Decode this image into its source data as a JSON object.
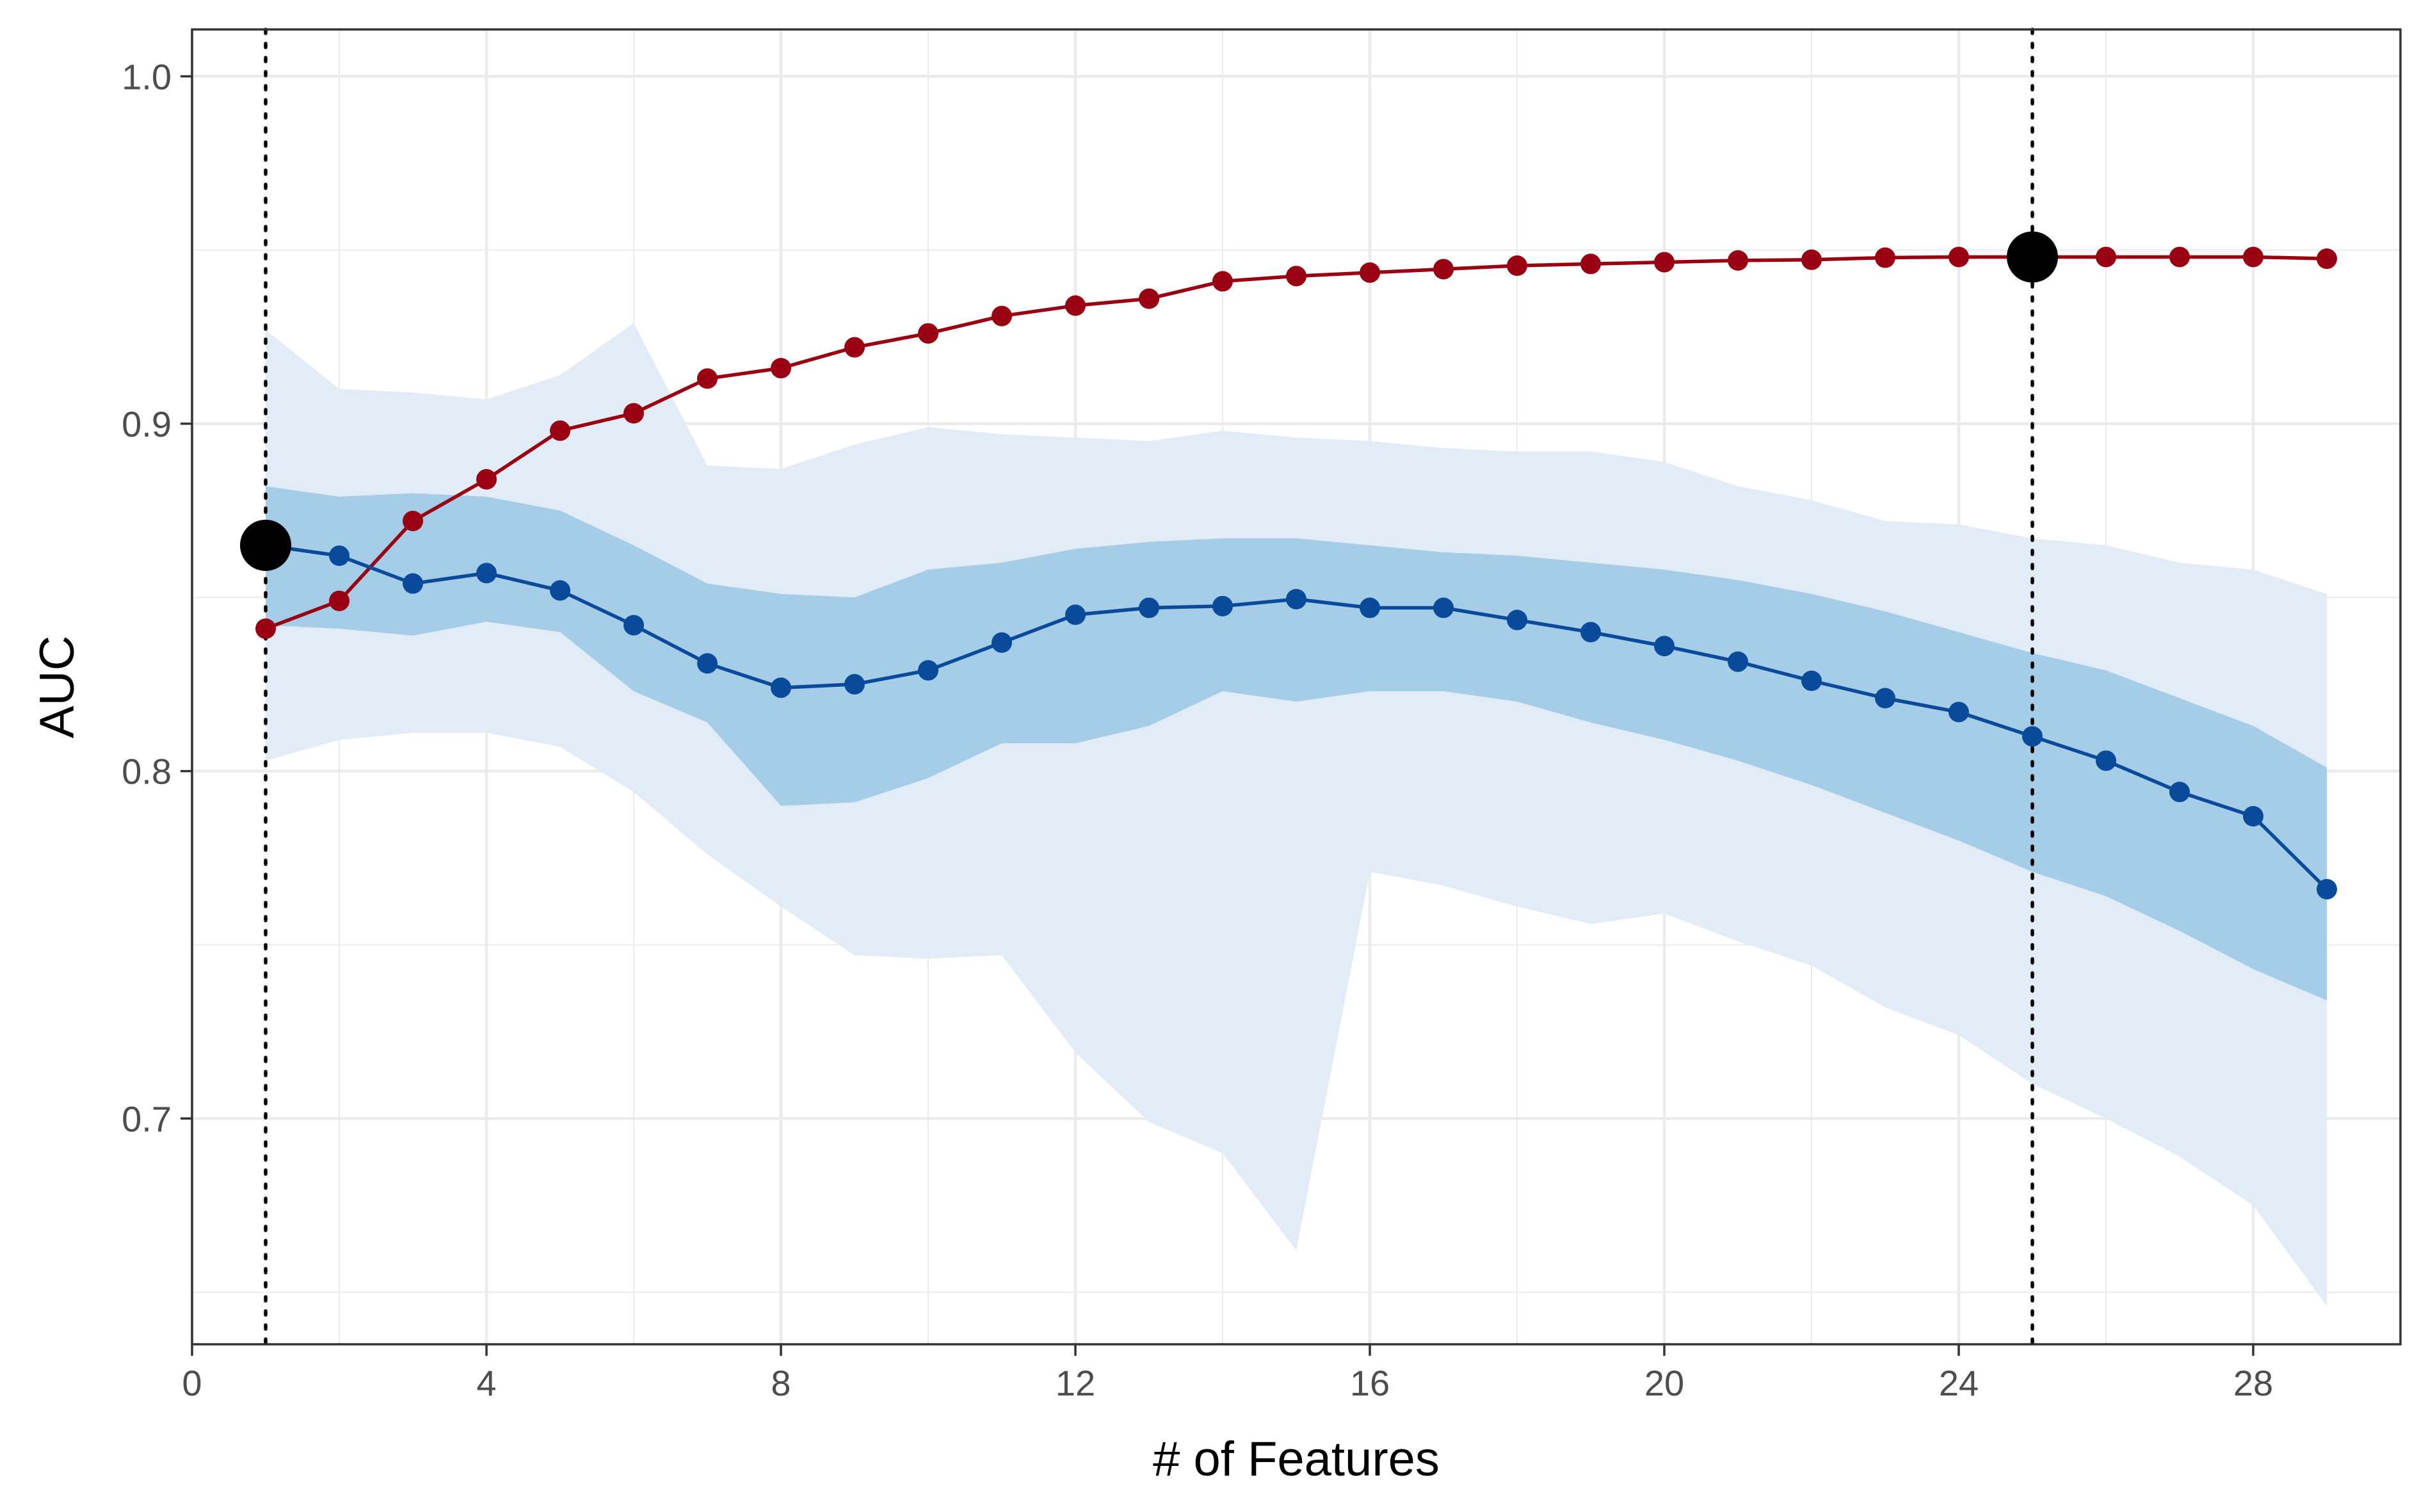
{
  "chart_data": {
    "type": "line",
    "xlabel": "# of Features",
    "ylabel": "AUC",
    "xlim": [
      0,
      30
    ],
    "ylim": [
      0.635,
      1.0135
    ],
    "x_ticks": [
      0,
      4,
      8,
      12,
      16,
      20,
      24,
      28
    ],
    "y_ticks": [
      0.7,
      0.8,
      0.9,
      1.0
    ],
    "x_tick_labels": [
      "0",
      "4",
      "8",
      "12",
      "16",
      "20",
      "24",
      "28"
    ],
    "y_tick_labels": [
      "0.7",
      "0.8",
      "0.9",
      "1.0"
    ],
    "grid": true,
    "x": [
      1,
      2,
      3,
      4,
      5,
      6,
      7,
      8,
      9,
      10,
      11,
      12,
      13,
      14,
      15,
      16,
      17,
      18,
      19,
      20,
      21,
      22,
      23,
      24,
      25,
      26,
      27,
      28,
      29
    ],
    "series": [
      {
        "color": "#990011",
        "values": [
          0.841,
          0.849,
          0.872,
          0.884,
          0.898,
          0.903,
          0.913,
          0.916,
          0.922,
          0.926,
          0.931,
          0.934,
          0.936,
          0.941,
          0.9425,
          0.9435,
          0.9445,
          0.9455,
          0.946,
          0.9465,
          0.947,
          0.9472,
          0.9478,
          0.948,
          0.948,
          0.948,
          0.948,
          0.948,
          0.9475
        ]
      },
      {
        "color": "#0a4a9a",
        "values": [
          0.865,
          0.862,
          0.854,
          0.857,
          0.852,
          0.842,
          0.831,
          0.824,
          0.825,
          0.829,
          0.837,
          0.845,
          0.847,
          0.8475,
          0.8495,
          0.847,
          0.847,
          0.8435,
          0.84,
          0.836,
          0.8315,
          0.826,
          0.821,
          0.817,
          0.81,
          0.803,
          0.794,
          0.787,
          0.766
        ]
      }
    ],
    "bands": [
      {
        "color": "#e2ecf7",
        "upper": [
          0.927,
          0.91,
          0.909,
          0.907,
          0.914,
          0.929,
          0.888,
          0.887,
          0.894,
          0.899,
          0.897,
          0.896,
          0.895,
          0.898,
          0.896,
          0.895,
          0.893,
          0.892,
          0.892,
          0.889,
          0.882,
          0.878,
          0.872,
          0.871,
          0.867,
          0.865,
          0.86,
          0.858,
          0.851
        ],
        "lower": [
          0.803,
          0.809,
          0.811,
          0.811,
          0.807,
          0.794,
          0.776,
          0.761,
          0.747,
          0.746,
          0.747,
          0.719,
          0.699,
          0.69,
          0.662,
          0.771,
          0.767,
          0.761,
          0.756,
          0.759,
          0.751,
          0.744,
          0.732,
          0.724,
          0.71,
          0.7,
          0.689,
          0.675,
          0.646
        ]
      },
      {
        "color": "#a6cde7",
        "upper": [
          0.882,
          0.879,
          0.88,
          0.879,
          0.875,
          0.865,
          0.854,
          0.851,
          0.85,
          0.858,
          0.86,
          0.864,
          0.866,
          0.867,
          0.867,
          0.865,
          0.863,
          0.862,
          0.86,
          0.858,
          0.855,
          0.851,
          0.846,
          0.84,
          0.834,
          0.829,
          0.821,
          0.813,
          0.801
        ],
        "lower": [
          0.842,
          0.841,
          0.839,
          0.843,
          0.84,
          0.823,
          0.814,
          0.79,
          0.791,
          0.798,
          0.808,
          0.808,
          0.813,
          0.823,
          0.82,
          0.823,
          0.823,
          0.82,
          0.814,
          0.809,
          0.803,
          0.796,
          0.788,
          0.78,
          0.771,
          0.764,
          0.754,
          0.743,
          0.734
        ]
      }
    ],
    "vlines": [
      1,
      25
    ],
    "highlights": [
      {
        "x": 1,
        "y": 0.865
      },
      {
        "x": 25,
        "y": 0.948
      }
    ]
  }
}
